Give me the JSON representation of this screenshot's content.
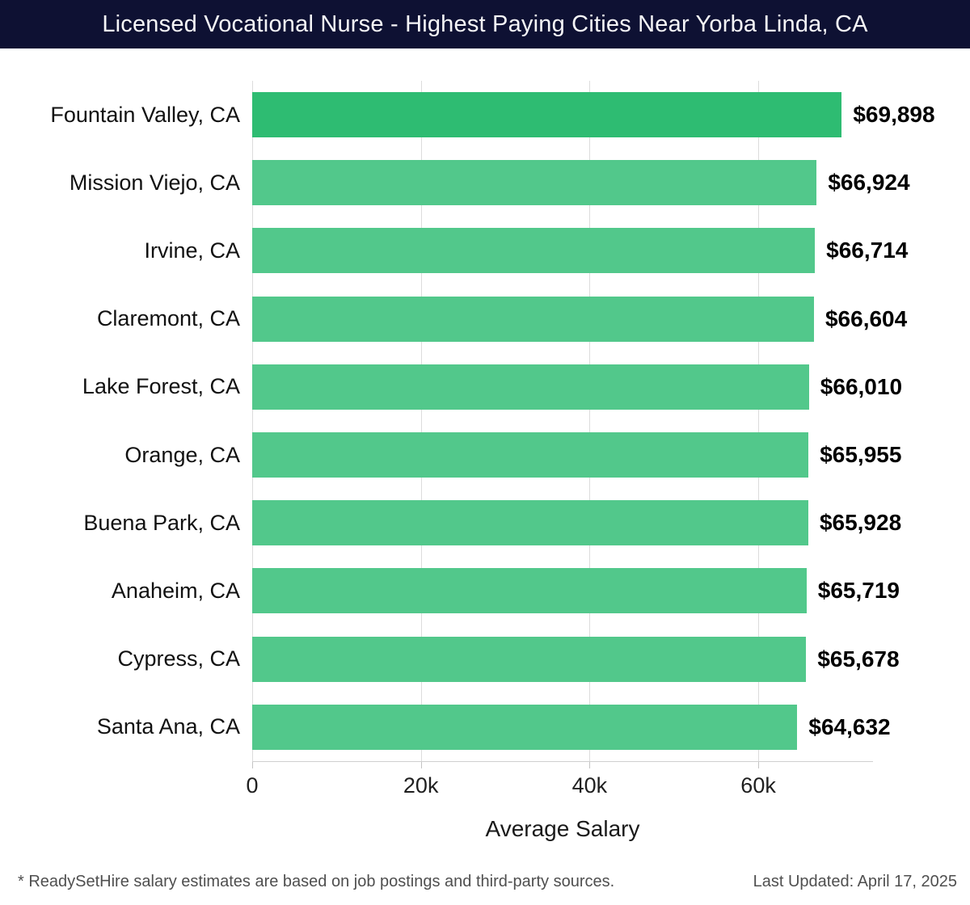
{
  "header": {
    "title": "Licensed Vocational Nurse - Highest Paying Cities Near Yorba Linda, CA",
    "bg_color": "#0E1133",
    "text_color": "#F5F5F7"
  },
  "chart_data": {
    "type": "bar",
    "orientation": "horizontal",
    "title": "Licensed Vocational Nurse - Highest Paying Cities Near Yorba Linda, CA",
    "categories": [
      "Fountain Valley, CA",
      "Mission Viejo, CA",
      "Irvine, CA",
      "Claremont, CA",
      "Lake Forest, CA",
      "Orange, CA",
      "Buena Park, CA",
      "Anaheim, CA",
      "Cypress, CA",
      "Santa Ana, CA"
    ],
    "values": [
      69898,
      66924,
      66714,
      66604,
      66010,
      65955,
      65928,
      65719,
      65678,
      64632
    ],
    "value_labels": [
      "$69,898",
      "$66,924",
      "$66,714",
      "$66,604",
      "$66,010",
      "$65,955",
      "$65,928",
      "$65,719",
      "$65,678",
      "$64,632"
    ],
    "xlabel": "Average Salary",
    "xlim": [
      0,
      73600
    ],
    "xticks": [
      {
        "value": 0,
        "label": "0"
      },
      {
        "value": 20000,
        "label": "20k"
      },
      {
        "value": 40000,
        "label": "40k"
      },
      {
        "value": 60000,
        "label": "60k"
      }
    ],
    "grid": "vertical",
    "legend": "none",
    "highlight_index": 0,
    "bar_colors": {
      "highlight": "#2EBC72",
      "default": "#52C88B"
    }
  },
  "footer": {
    "note": "* ReadySetHire salary estimates are based on job postings and third-party sources.",
    "last_updated": "Last Updated: April 17, 2025"
  }
}
